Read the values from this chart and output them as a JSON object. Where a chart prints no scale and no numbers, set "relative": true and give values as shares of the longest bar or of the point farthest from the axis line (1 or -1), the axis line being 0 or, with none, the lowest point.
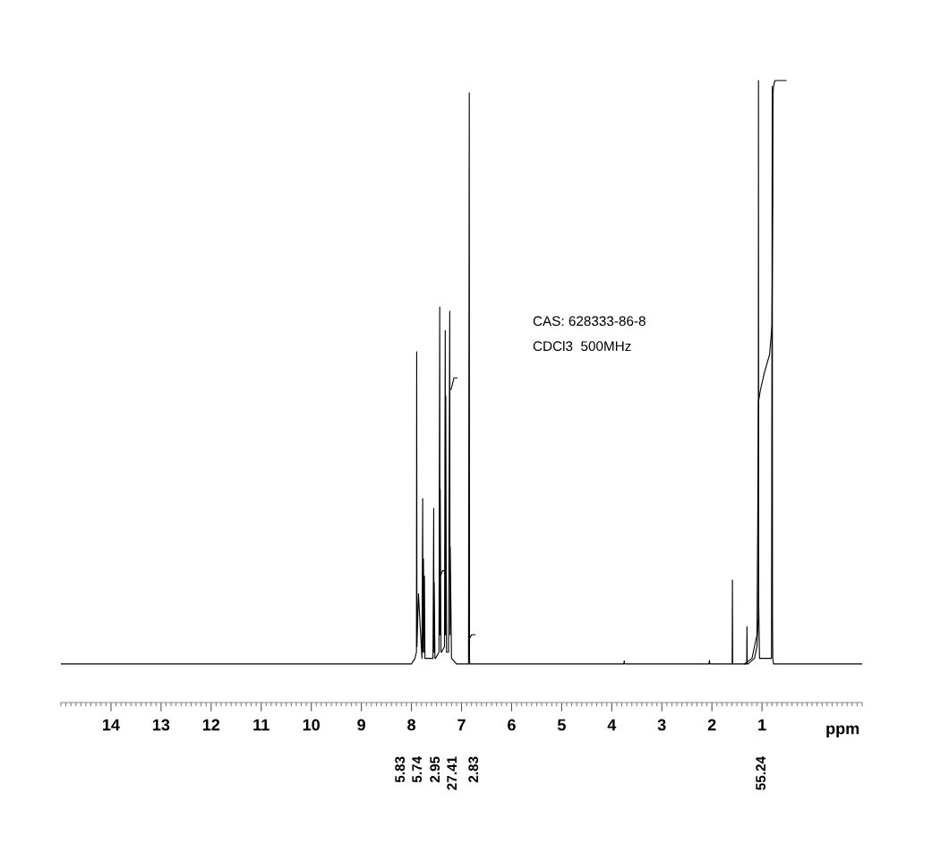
{
  "chart_data": {
    "type": "line",
    "relative": true,
    "xlabel": "ppm",
    "xlim": [
      15,
      -1
    ],
    "xticks": [
      14,
      13,
      12,
      11,
      10,
      9,
      8,
      7,
      6,
      5,
      4,
      3,
      2,
      1
    ],
    "grid": false,
    "tick_labels": "x",
    "series": [
      {
        "color": "#000000",
        "x": [
          15,
          8.0,
          7.93,
          7.9,
          7.895,
          7.89,
          7.86,
          7.79,
          7.775,
          7.77,
          7.76,
          7.745,
          7.74,
          7.73,
          7.57,
          7.555,
          7.55,
          7.545,
          7.53,
          7.52,
          7.45,
          7.435,
          7.43,
          7.425,
          7.41,
          7.4,
          7.34,
          7.325,
          7.32,
          7.315,
          7.3,
          7.26,
          7.235,
          7.23,
          7.225,
          7.2,
          7.1,
          6.86,
          6.845,
          6.84,
          6.835,
          6.82,
          3.76,
          3.75,
          3.74,
          2.06,
          2.05,
          2.04,
          1.61,
          1.595,
          1.59,
          1.585,
          1.57,
          1.32,
          1.305,
          1.3,
          1.295,
          1.28,
          1.15,
          1.1,
          1.075,
          1.07,
          1.065,
          1.05,
          0.95,
          0.81,
          0.795,
          0.79,
          0.785,
          0.77,
          0.7,
          -1
        ],
        "values": [
          0.062,
          0.062,
          0.071,
          0.081,
          0.564,
          0.09,
          0.175,
          0.071,
          0.328,
          0.081,
          0.231,
          0.081,
          0.203,
          0.071,
          0.071,
          0.312,
          0.081,
          0.193,
          0.071,
          0.071,
          0.081,
          0.636,
          0.109,
          0.343,
          0.081,
          0.081,
          0.09,
          0.598,
          0.109,
          0.493,
          0.081,
          0.081,
          0.629,
          0.109,
          0.25,
          0.071,
          0.062,
          0.062,
          0.98,
          0.071,
          0.062,
          0.062,
          0.062,
          0.067,
          0.062,
          0.062,
          0.068,
          0.062,
          0.062,
          0.062,
          0.197,
          0.062,
          0.062,
          0.062,
          0.062,
          0.122,
          0.062,
          0.062,
          0.071,
          0.09,
          0.137,
          1.0,
          0.156,
          0.071,
          0.071,
          0.071,
          0.991,
          0.137,
          0.071,
          0.062,
          0.062,
          0.062
        ]
      },
      {
        "color": "#000000",
        "x": [
          7.43,
          7.38,
          7.32,
          null,
          7.21,
          7.15,
          7.12,
          7.09,
          null,
          6.86,
          6.8,
          6.73,
          null,
          1.35,
          1.2,
          1.1,
          1.07,
          1.03,
          0.95,
          0.85,
          0.8,
          0.785,
          0.78,
          0.76,
          0.74,
          0.6,
          0.52
        ],
        "values": [
          0.203,
          0.212,
          0.212,
          null,
          0.503,
          0.522,
          0.522,
          0.522,
          null,
          0.1,
          0.109,
          0.109,
          null,
          0.062,
          0.071,
          0.109,
          0.484,
          0.503,
          0.531,
          0.559,
          0.606,
          0.812,
          0.981,
          0.995,
          1.0,
          1.0,
          1.0
        ]
      }
    ],
    "annotations": [
      "CAS: 628333-86-8",
      "CDCl3  500MHz",
      "5.83",
      "5.74",
      "2.95",
      "27.41",
      "2.83",
      "55.24"
    ]
  }
}
